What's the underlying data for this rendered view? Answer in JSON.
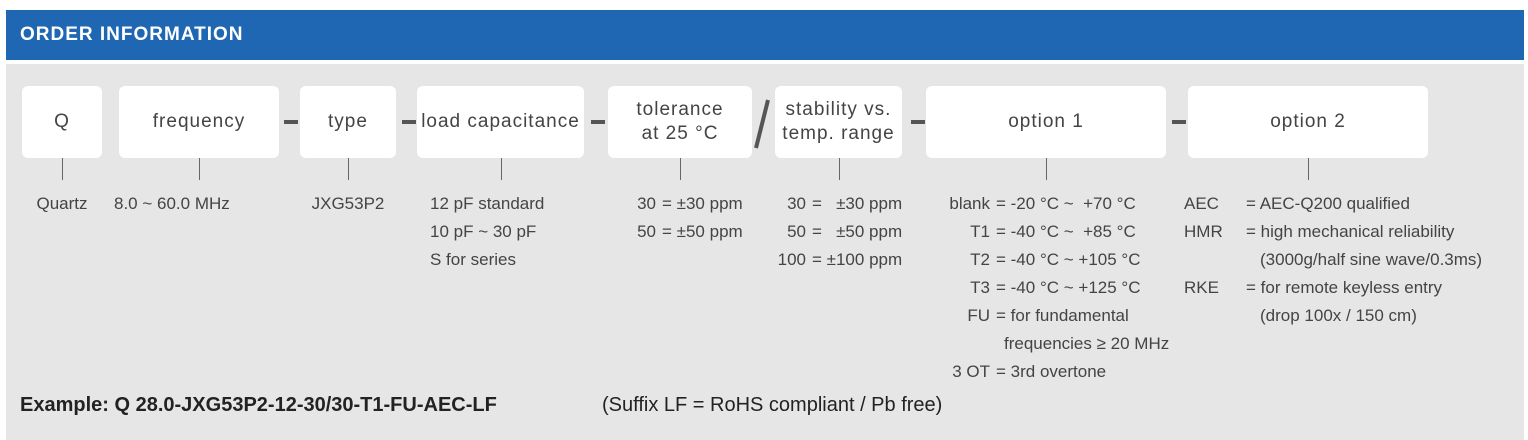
{
  "header": {
    "title": "ORDER INFORMATION"
  },
  "fields": [
    {
      "label": [
        "Q"
      ],
      "description": [
        "Quartz"
      ]
    },
    {
      "label": [
        "frequency"
      ],
      "description": [
        "8.0 ~ 60.0 MHz"
      ]
    },
    {
      "label": [
        "type"
      ],
      "description": [
        "JXG53P2"
      ]
    },
    {
      "label": [
        "load capacitance"
      ],
      "description": [
        "12 pF standard",
        "10 pF ~ 30 pF",
        "S for series"
      ]
    },
    {
      "label": [
        "tolerance",
        "at 25 °C"
      ],
      "description": [
        {
          "code": "30",
          "text": "= ±30 ppm"
        },
        {
          "code": "50",
          "text": "= ±50 ppm"
        }
      ]
    },
    {
      "label": [
        "stability vs.",
        "temp. range"
      ],
      "description": [
        {
          "code": "30",
          "text": "=   ±30 ppm"
        },
        {
          "code": "50",
          "text": "=   ±50 ppm"
        },
        {
          "code": "100",
          "text": "= ±100 ppm"
        }
      ]
    },
    {
      "label": [
        "option 1"
      ],
      "description": [
        {
          "code": "blank",
          "text": "= -20 °C ~  +70 °C"
        },
        {
          "code": "T1",
          "text": "= -40 °C ~  +85 °C"
        },
        {
          "code": "T2",
          "text": "= -40 °C ~ +105 °C"
        },
        {
          "code": "T3",
          "text": "= -40 °C ~ +125 °C"
        },
        {
          "code": "FU",
          "text": "= for fundamental"
        },
        "frequencies ≥ 20 MHz",
        {
          "code": "3 OT",
          "text": "= 3rd overtone"
        }
      ]
    },
    {
      "label": [
        "option 2"
      ],
      "description": [
        {
          "code": "AEC",
          "text": "= AEC-Q200 qualified"
        },
        {
          "code": "HMR",
          "text": "= high mechanical reliability"
        },
        "(3000g/half sine wave/0.3ms)",
        {
          "code": "RKE",
          "text": "= for remote keyless entry"
        },
        "(drop 100x / 150 cm)"
      ]
    }
  ],
  "example": {
    "code": "Example: Q 28.0-JXG53P2-12-30/30-T1-FU-AEC-LF",
    "note": "(Suffix LF = RoHS compliant / Pb free)"
  }
}
